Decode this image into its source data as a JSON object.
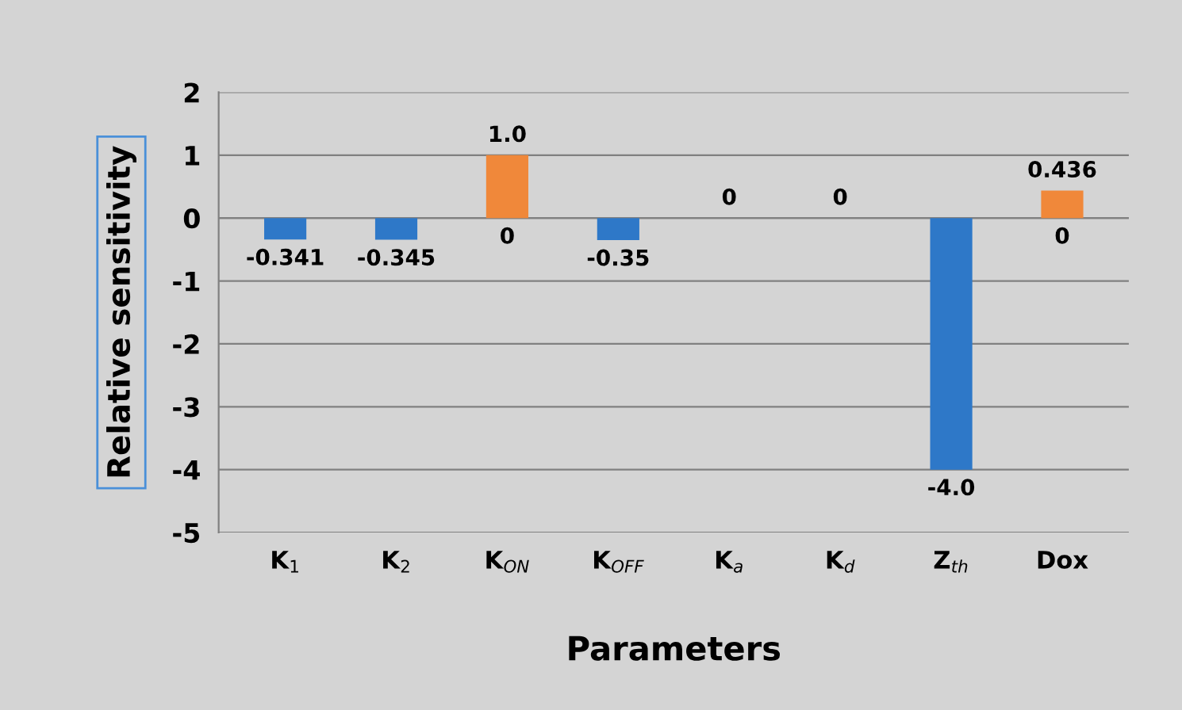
{
  "chart_data": {
    "type": "bar",
    "xlabel": "Parameters",
    "ylabel": "Relative sensitivity",
    "categories": [
      "K$_{1}$",
      "K$_{2}$",
      "K$_{ON}$",
      "K$_{OFF}$",
      "K$_{a}$",
      "K$_{d}$",
      "Z$_{th}$",
      "Dox"
    ],
    "series": [
      {
        "color": "#2e78c8",
        "values": [
          -0.341,
          -0.345,
          0,
          -0.35,
          0,
          0,
          -4.0,
          0
        ],
        "value_labels": [
          "-0.341",
          "-0.345",
          "0",
          "-0.35",
          null,
          null,
          "-4.0",
          "0"
        ]
      },
      {
        "color": "#f0883a",
        "values": [
          0,
          0,
          1.0,
          0,
          0,
          0,
          0,
          0.436
        ],
        "value_labels": [
          null,
          null,
          "1.0",
          null,
          "0",
          "0",
          null,
          "0.436"
        ]
      }
    ],
    "ylim": [
      -5,
      2
    ],
    "yticks": [
      -5,
      -4,
      -3,
      -2,
      -1,
      0,
      1,
      2
    ],
    "grid": "y",
    "legend": false
  }
}
